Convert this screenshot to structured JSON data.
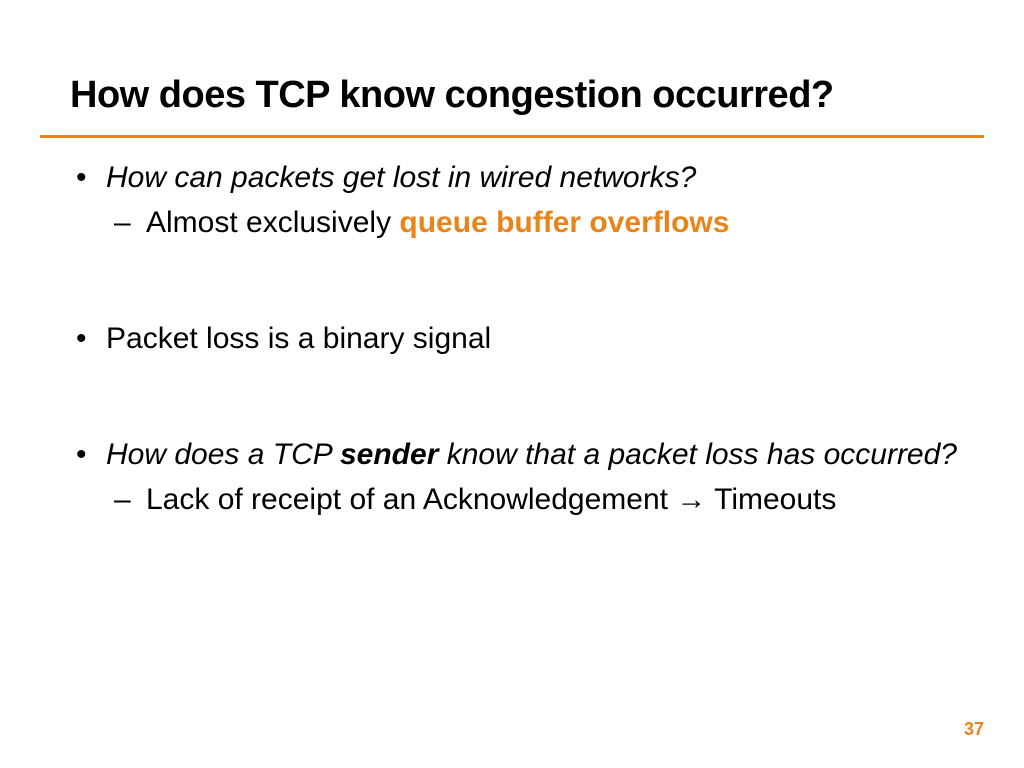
{
  "slide": {
    "title": "How does TCP know congestion occurred?",
    "bullets": [
      {
        "q": "How can packets get lost in wired networks?",
        "sub_prefix": "Almost exclusively ",
        "sub_accent": "queue buffer overflows"
      },
      {
        "text": "Packet loss is a binary signal"
      },
      {
        "q_pre": "How does a TCP ",
        "q_bold": "sender",
        "q_post": " know that a packet loss has occurred?",
        "sub_prefix": "Lack of receipt of an Acknowledgement ",
        "sub_arrow": "→",
        "sub_suffix": " Timeouts"
      }
    ],
    "page_number": "37",
    "colors": {
      "accent": "#e8841a",
      "text": "#000000",
      "background": "#ffffff"
    },
    "fontsize": {
      "title": 38,
      "body": 30,
      "pagenum": 18
    }
  }
}
